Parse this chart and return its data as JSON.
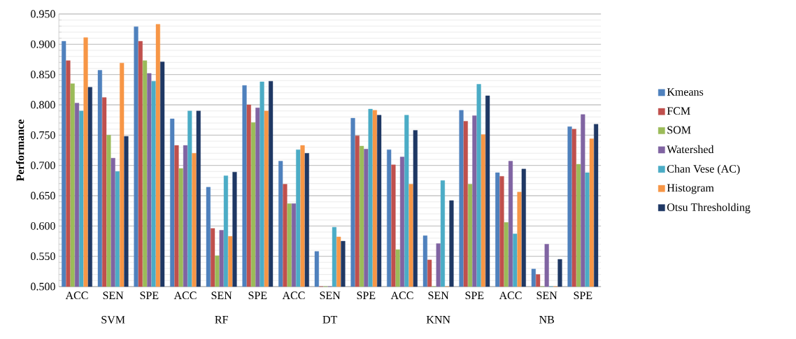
{
  "chart_data": {
    "type": "bar",
    "ylabel": "Performance",
    "categories": [
      "ACC",
      "SEN",
      "SPE",
      "ACC",
      "SEN",
      "SPE",
      "ACC",
      "SEN",
      "SPE",
      "ACC",
      "SEN",
      "SPE",
      "ACC",
      "SEN",
      "SPE"
    ],
    "annotations": [
      "SVM",
      "RF",
      "DT",
      "KNN",
      "NB"
    ],
    "series": [
      {
        "name": "Kmeans",
        "color": "#4f81bd",
        "values": [
          0.905,
          0.857,
          0.929,
          0.777,
          0.664,
          0.832,
          0.707,
          0.558,
          0.778,
          0.726,
          0.584,
          0.791,
          0.688,
          0.529,
          0.764
        ]
      },
      {
        "name": "FCM",
        "color": "#c0504d",
        "values": [
          0.873,
          0.812,
          0.905,
          0.733,
          0.596,
          0.8,
          0.669,
          0.5,
          0.749,
          0.701,
          0.544,
          0.773,
          0.682,
          0.52,
          0.76
        ]
      },
      {
        "name": "SOM",
        "color": "#9bbb59",
        "values": [
          0.835,
          0.75,
          0.873,
          0.695,
          0.551,
          0.771,
          0.637,
          0.5,
          0.732,
          0.561,
          0.5,
          0.669,
          0.606,
          0.5,
          0.702
        ]
      },
      {
        "name": "Watershed",
        "color": "#8064a2",
        "values": [
          0.803,
          0.712,
          0.852,
          0.733,
          0.593,
          0.795,
          0.637,
          0.5,
          0.727,
          0.714,
          0.571,
          0.782,
          0.707,
          0.57,
          0.784
        ]
      },
      {
        "name": "Chan Vese (AC)",
        "color": "#4bacc6",
        "values": [
          0.79,
          0.69,
          0.839,
          0.79,
          0.683,
          0.838,
          0.726,
          0.598,
          0.793,
          0.783,
          0.675,
          0.834,
          0.587,
          0.5,
          0.688
        ]
      },
      {
        "name": "Histogram",
        "color": "#f79646",
        "values": [
          0.911,
          0.869,
          0.933,
          0.72,
          0.583,
          0.79,
          0.733,
          0.582,
          0.791,
          0.669,
          0.5,
          0.751,
          0.656,
          0.5,
          0.744
        ]
      },
      {
        "name": "Otsu Thresholding",
        "color": "#1f3864",
        "values": [
          0.829,
          0.748,
          0.871,
          0.79,
          0.689,
          0.839,
          0.72,
          0.575,
          0.783,
          0.758,
          0.642,
          0.815,
          0.694,
          0.545,
          0.768
        ]
      }
    ],
    "ylim": [
      0.5,
      0.95
    ],
    "yticks": [
      {
        "value": 0.5,
        "label": "0.500"
      },
      {
        "value": 0.55,
        "label": "0.550"
      },
      {
        "value": 0.6,
        "label": "0.600"
      },
      {
        "value": 0.65,
        "label": "0.650"
      },
      {
        "value": 0.7,
        "label": "0.700"
      },
      {
        "value": 0.75,
        "label": "0.750"
      },
      {
        "value": 0.8,
        "label": "0.800"
      },
      {
        "value": 0.85,
        "label": "0.850"
      },
      {
        "value": 0.9,
        "label": "0.900"
      },
      {
        "value": 0.95,
        "label": "0.950"
      }
    ],
    "grid": "y",
    "legend": "right"
  }
}
